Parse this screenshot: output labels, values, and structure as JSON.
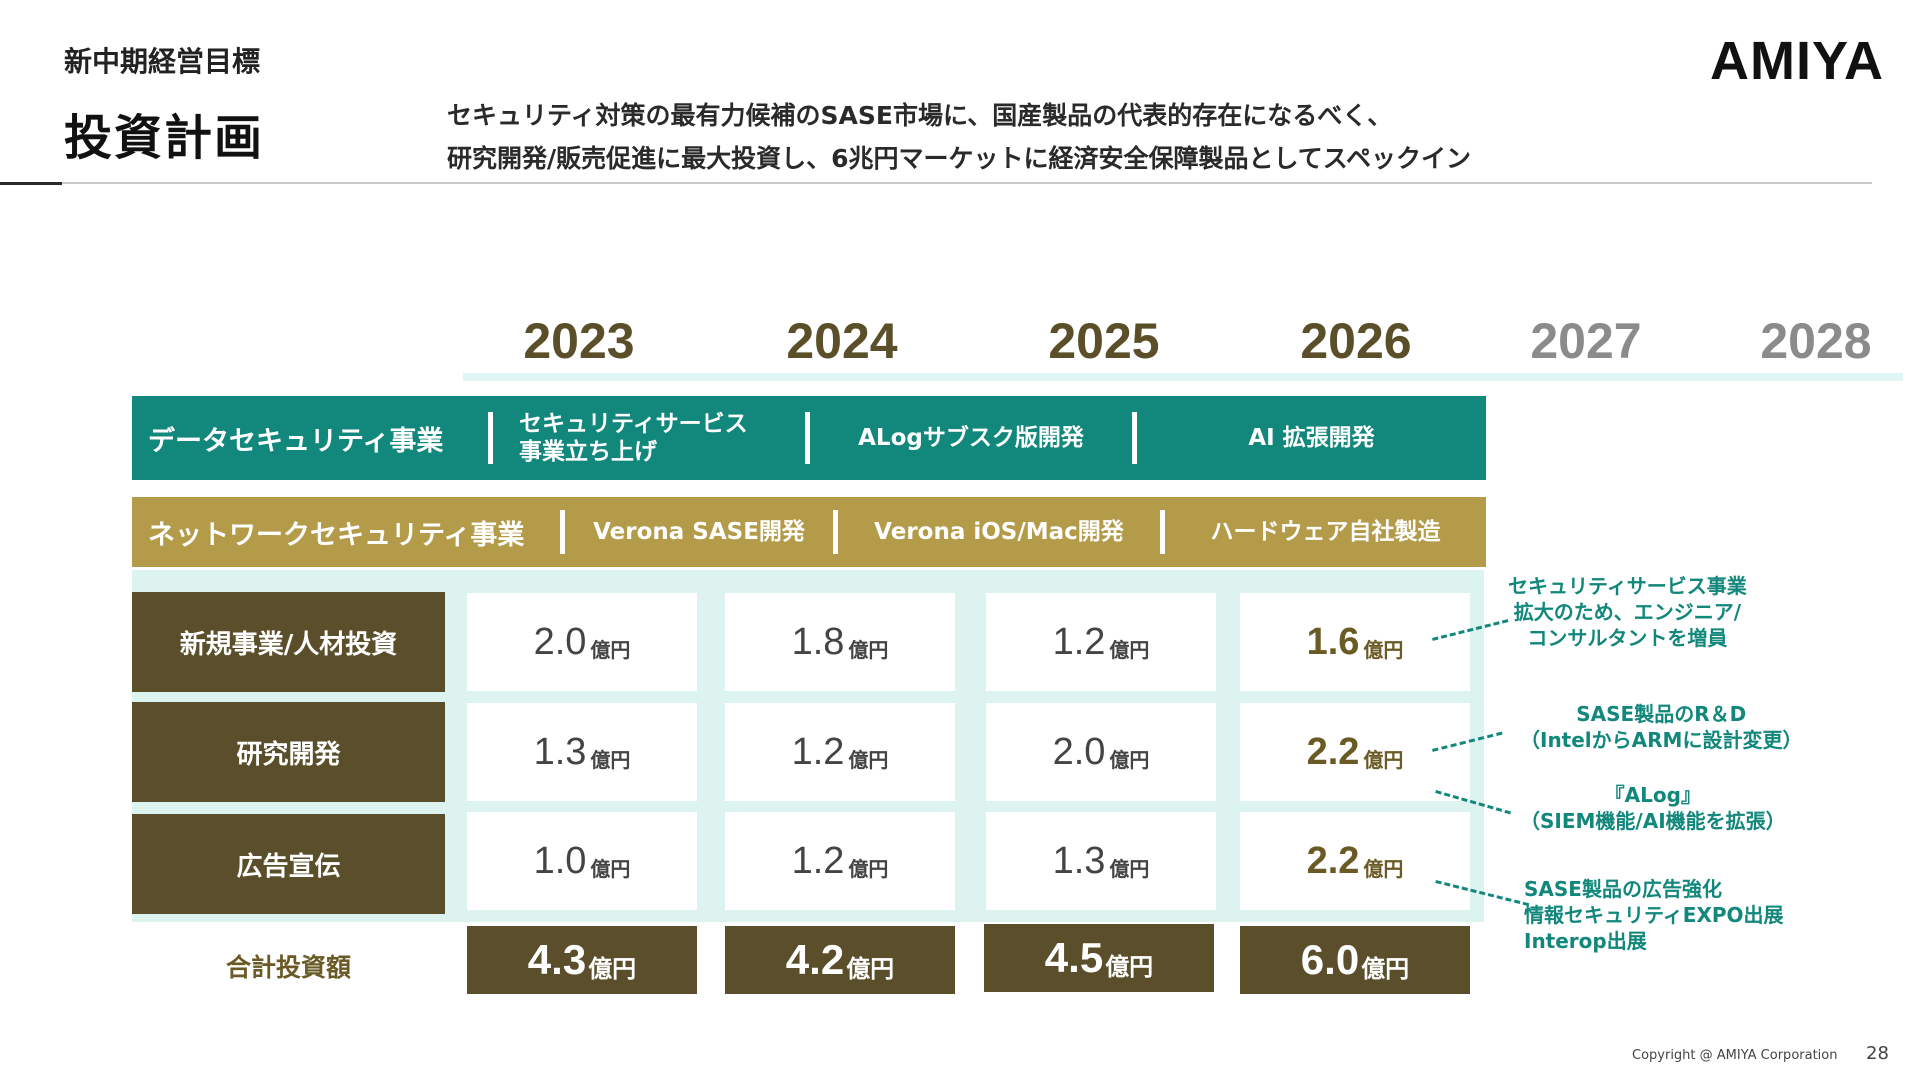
{
  "header": {
    "supertitle": "新中期経営目標",
    "title": "投資計画",
    "subtitle_line1": "セキュリティ対策の最有力候補のSASE市場に、国産製品の代表的存在になるべく、",
    "subtitle_line2": "研究開発/販売促進に最大投資し、6兆円マーケットに経済安全保障製品としてスペックイン",
    "logo": "AMIYA"
  },
  "years": [
    "2023",
    "2024",
    "2025",
    "2026",
    "2027",
    "2028"
  ],
  "businesses": {
    "data_security": {
      "label": "データセキュリティ事業",
      "segments": [
        "セキュリティサービス\n事業立ち上げ",
        "ALogサブスク版開発",
        "AI 拡張開発"
      ],
      "color": "#12877c"
    },
    "network_security": {
      "label": "ネットワークセキュリティ事業",
      "segments": [
        "Verona SASE開発",
        "Verona iOS/Mac開発",
        "ハードウェア自社製造"
      ],
      "color": "#b39b4a"
    }
  },
  "investment": {
    "unit": "億円",
    "rows": [
      {
        "label": "新規事業/人材投資",
        "values": [
          "2.0",
          "1.8",
          "1.2",
          "1.6"
        ]
      },
      {
        "label": "研究開発",
        "values": [
          "1.3",
          "1.2",
          "2.0",
          "2.2"
        ]
      },
      {
        "label": "広告宣伝",
        "values": [
          "1.0",
          "1.2",
          "1.3",
          "2.2"
        ]
      }
    ],
    "total_label": "合計投資額",
    "totals": [
      "4.3",
      "4.2",
      "4.5",
      "6.0"
    ]
  },
  "notes": {
    "n1": [
      "セキュリティサービス事業",
      "拡大のため、エンジニア/",
      "コンサルタントを増員"
    ],
    "n2": [
      "SASE製品のR＆D",
      "（IntelからARMに設計変更）"
    ],
    "n3": [
      "『ALog』",
      "（SIEM機能/AI機能を拡張）"
    ],
    "n4": [
      "SASE製品の広告強化",
      "情報セキュリティEXPO出展",
      "Interop出展"
    ]
  },
  "footer": {
    "copyright": "Copyright @ AMIYA Corporation",
    "page": "28"
  },
  "colors": {
    "teal": "#12877c",
    "gold": "#b39b4a",
    "dark_olive": "#5a4f2a",
    "light_teal": "#dcf3f0"
  }
}
